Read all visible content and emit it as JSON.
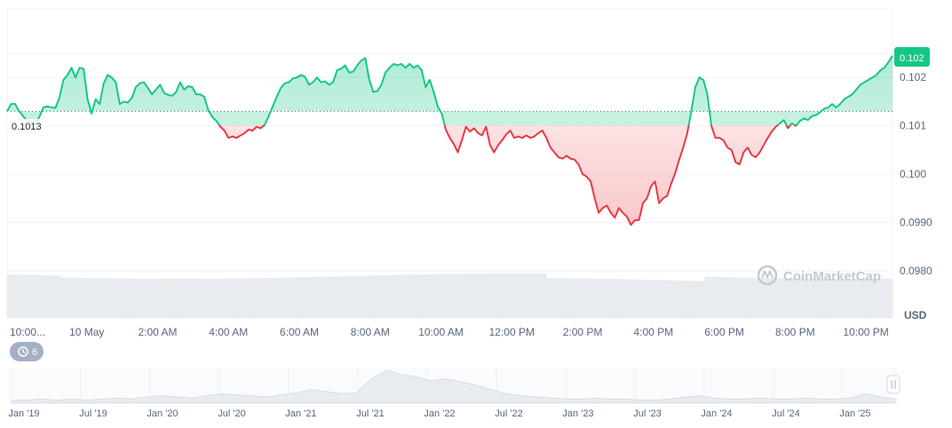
{
  "chart_data": {
    "type": "line",
    "series": [
      {
        "values": [
          0.1013,
          0.10145,
          0.10145,
          0.1013,
          0.1012,
          0.10108,
          0.10108,
          0.10105,
          0.10118,
          0.10138,
          0.1014,
          0.10138,
          0.10137,
          0.10158,
          0.10195,
          0.10205,
          0.1022,
          0.102,
          0.1022,
          0.10218,
          0.10155,
          0.10125,
          0.10155,
          0.10145,
          0.10188,
          0.10205,
          0.102,
          0.1019,
          0.10145,
          0.1015,
          0.10148,
          0.10158,
          0.1018,
          0.10188,
          0.1019,
          0.10178,
          0.10165,
          0.10175,
          0.10185,
          0.10168,
          0.10164,
          0.10162,
          0.1017,
          0.1019,
          0.10175,
          0.10182,
          0.1018,
          0.10165,
          0.10165,
          0.1016,
          0.10132,
          0.10118,
          0.1011,
          0.10098,
          0.1009,
          0.10075,
          0.10078,
          0.10075,
          0.1008,
          0.10085,
          0.10092,
          0.1009,
          0.10098,
          0.10095,
          0.10102,
          0.1012,
          0.1014,
          0.1016,
          0.10178,
          0.10188,
          0.1019,
          0.10198,
          0.102,
          0.10205,
          0.10202,
          0.10185,
          0.1019,
          0.102,
          0.1019,
          0.10192,
          0.10185,
          0.1019,
          0.10215,
          0.10218,
          0.10225,
          0.1021,
          0.10212,
          0.10225,
          0.10235,
          0.1024,
          0.10195,
          0.1017,
          0.10172,
          0.10185,
          0.1021,
          0.1022,
          0.10228,
          0.10225,
          0.10228,
          0.1022,
          0.10228,
          0.1022,
          0.10225,
          0.10215,
          0.1018,
          0.10195,
          0.1017,
          0.1014,
          0.10125,
          0.10092,
          0.10075,
          0.10062,
          0.10045,
          0.1007,
          0.10098,
          0.10088,
          0.10095,
          0.10085,
          0.1008,
          0.10098,
          0.1006,
          0.10045,
          0.1006,
          0.1007,
          0.10082,
          0.1009,
          0.10075,
          0.10078,
          0.10075,
          0.1008,
          0.10075,
          0.10078,
          0.10085,
          0.1009,
          0.10075,
          0.10055,
          0.10045,
          0.10035,
          0.10032,
          0.10038,
          0.10032,
          0.1003,
          0.1002,
          0.1,
          0.09995,
          0.09985,
          0.0995,
          0.0992,
          0.0993,
          0.09935,
          0.0992,
          0.0991,
          0.0993,
          0.0992,
          0.09912,
          0.09895,
          0.09905,
          0.09905,
          0.0994,
          0.0995,
          0.09975,
          0.09985,
          0.0994,
          0.0995,
          0.09955,
          0.0998,
          0.10002,
          0.1003,
          0.10055,
          0.10085,
          0.1013,
          0.1018,
          0.102,
          0.10195,
          0.10165,
          0.101,
          0.10075,
          0.10075,
          0.1007,
          0.10055,
          0.1005,
          0.10025,
          0.1002,
          0.10045,
          0.10055,
          0.1004,
          0.10035,
          0.10045,
          0.1006,
          0.10075,
          0.10088,
          0.10098,
          0.10105,
          0.10112,
          0.10095,
          0.10105,
          0.101,
          0.1011,
          0.10115,
          0.10112,
          0.1012,
          0.10122,
          0.10128,
          0.10135,
          0.10138,
          0.10145,
          0.10138,
          0.10145,
          0.10155,
          0.1016,
          0.10165,
          0.10175,
          0.10185,
          0.1019,
          0.10195,
          0.102,
          0.10205,
          0.10215,
          0.1022,
          0.10232,
          0.10245
        ]
      }
    ],
    "baseline": 0.1013,
    "baseline_label": "0.1013",
    "current_price_label": "0.102",
    "yticks": [
      "0.102",
      "0.102",
      "0.101",
      "0.100",
      "0.0990",
      "0.0980"
    ],
    "ytick_values": [
      0.1025,
      0.102,
      0.101,
      0.1,
      0.099,
      0.098
    ],
    "ylim": [
      0.0975,
      0.1035
    ],
    "ylabel": "USD",
    "xticks": [
      "10:00...",
      "10 May",
      "2:00 AM",
      "4:00 AM",
      "6:00 AM",
      "8:00 AM",
      "10:00 AM",
      "12:00 PM",
      "2:00 PM",
      "4:00 PM",
      "6:00 PM",
      "8:00 PM",
      "10:00 PM"
    ],
    "xtick_positions": [
      0.0,
      0.08,
      0.16,
      0.24,
      0.32,
      0.4,
      0.48,
      0.56,
      0.64,
      0.72,
      0.8,
      0.88,
      0.96
    ],
    "grid": true,
    "watermark": "CoinMarketCap",
    "colors": {
      "up": "#16c784",
      "down": "#ea3943",
      "badge": "#16c784",
      "volume": "#e8ebef",
      "grid": "#eff2f5",
      "nav_area": "#e8ebef"
    },
    "navigator": {
      "labels": [
        "Jan '19",
        "Jul '19",
        "Jan '20",
        "Jul '20",
        "Jan '21",
        "Jul '21",
        "Jan '22",
        "Jul '22",
        "Jan '23",
        "Jul '23",
        "Jan '24",
        "Jul '24",
        "Jan '25"
      ],
      "values": [
        2,
        2,
        3,
        2,
        3,
        2,
        3,
        4,
        3,
        5,
        6,
        5,
        4,
        6,
        8,
        7,
        6,
        5,
        7,
        9,
        12,
        10,
        8,
        9,
        22,
        30,
        26,
        24,
        20,
        22,
        19,
        16,
        12,
        8,
        6,
        5,
        4,
        3,
        3,
        4,
        3,
        3,
        2,
        2,
        3,
        5,
        6,
        4,
        3,
        3,
        4,
        3,
        3,
        4,
        3,
        3,
        4,
        8,
        5,
        3
      ]
    }
  },
  "history_badge": {
    "icon": "history-icon",
    "count": "6"
  }
}
